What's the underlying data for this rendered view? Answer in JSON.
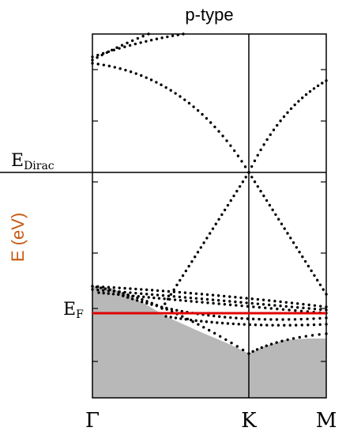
{
  "chart_data": {
    "type": "band-structure",
    "title": "p-type",
    "y_label": "E (eV)",
    "categories": [
      "Γ",
      "K",
      "M"
    ],
    "annotations": [
      {
        "main": "E",
        "sub": "Dirac"
      },
      {
        "main": "E",
        "sub": "F"
      }
    ]
  }
}
